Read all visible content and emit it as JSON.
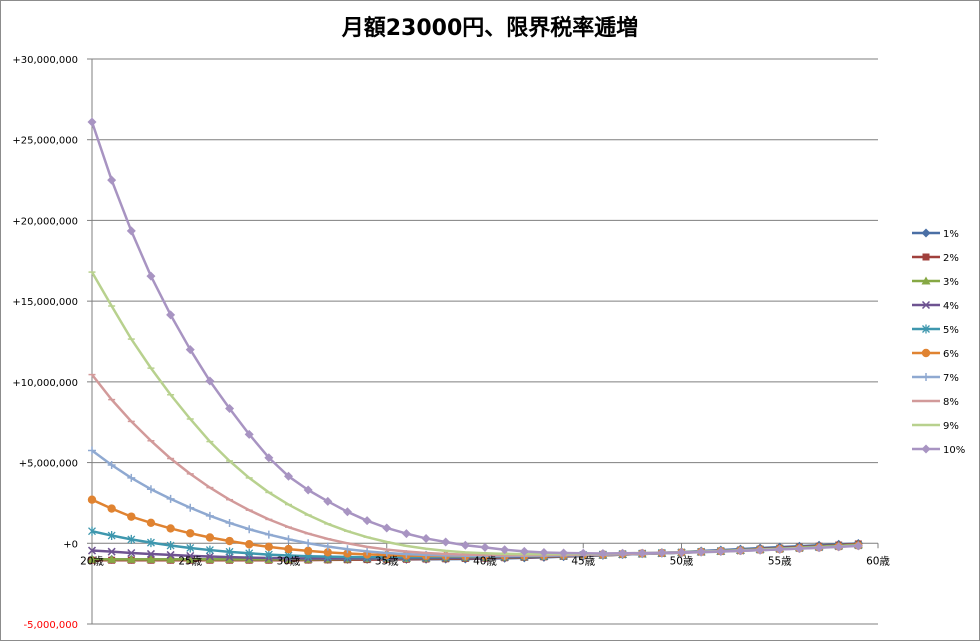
{
  "chart_data": {
    "type": "line",
    "title": "月額23000円、限界税率逓増",
    "xlabel": "",
    "ylabel": "",
    "x": [
      20,
      21,
      22,
      23,
      24,
      25,
      26,
      27,
      28,
      29,
      30,
      31,
      32,
      33,
      34,
      35,
      36,
      37,
      38,
      39,
      40,
      41,
      42,
      43,
      44,
      45,
      46,
      47,
      48,
      49,
      50,
      51,
      52,
      53,
      54,
      55,
      56,
      57,
      58,
      59
    ],
    "x_tick_labels": [
      "20歳",
      "25歳",
      "30歳",
      "35歳",
      "40歳",
      "45歳",
      "50歳",
      "55歳",
      "60歳"
    ],
    "x_tick_values": [
      20,
      25,
      30,
      35,
      40,
      45,
      50,
      55,
      60
    ],
    "y_tick_labels": [
      "+30,000,000",
      "+25,000,000",
      "+20,000,000",
      "+15,000,000",
      "+10,000,000",
      "+5,000,000",
      "+0",
      "-5,000,000"
    ],
    "y_tick_values": [
      30000000,
      25000000,
      20000000,
      15000000,
      10000000,
      5000000,
      0,
      -5000000
    ],
    "ylim": [
      -5000000,
      30000000
    ],
    "xlim": [
      20,
      60
    ],
    "grid": "horizontal",
    "legend_position": "right",
    "series": [
      {
        "name": "1%",
        "color": "#4a6fa5",
        "marker": "diamond",
        "values": [
          -1000000,
          -1000000,
          -1000000,
          -1000000,
          -1000000,
          -1000000,
          -1000000,
          -1000000,
          -1000000,
          -1000000,
          -1000000,
          -1000000,
          -1000000,
          -1000000,
          -1000000,
          -1000000,
          -1000000,
          -990000,
          -980000,
          -970000,
          -950000,
          -930000,
          -900000,
          -870000,
          -830000,
          -790000,
          -750000,
          -700000,
          -650000,
          -600000,
          -540000,
          -480000,
          -420000,
          -360000,
          -300000,
          -240000,
          -180000,
          -120000,
          -60000,
          -10000
        ]
      },
      {
        "name": "2%",
        "color": "#a0403c",
        "marker": "square",
        "values": [
          -1050000,
          -1050000,
          -1050000,
          -1050000,
          -1050000,
          -1050000,
          -1050000,
          -1050000,
          -1050000,
          -1050000,
          -1050000,
          -1040000,
          -1030000,
          -1020000,
          -1010000,
          -1000000,
          -990000,
          -975000,
          -960000,
          -940000,
          -920000,
          -895000,
          -870000,
          -840000,
          -810000,
          -775000,
          -740000,
          -700000,
          -660000,
          -615000,
          -570000,
          -520000,
          -470000,
          -415000,
          -360000,
          -300000,
          -240000,
          -180000,
          -110000,
          -40000
        ]
      },
      {
        "name": "3%",
        "color": "#86a844",
        "marker": "triangle",
        "values": [
          -1000000,
          -1000000,
          -1000000,
          -1000000,
          -1000000,
          -1000000,
          -1000000,
          -1000000,
          -1000000,
          -1000000,
          -1000000,
          -990000,
          -980000,
          -970000,
          -960000,
          -950000,
          -940000,
          -925000,
          -910000,
          -895000,
          -880000,
          -860000,
          -840000,
          -815000,
          -790000,
          -760000,
          -730000,
          -695000,
          -660000,
          -620000,
          -580000,
          -535000,
          -490000,
          -440000,
          -385000,
          -330000,
          -270000,
          -210000,
          -145000,
          -80000
        ]
      },
      {
        "name": "4%",
        "color": "#6e5391",
        "marker": "x",
        "values": [
          -450000,
          -520000,
          -600000,
          -660000,
          -720000,
          -780000,
          -820000,
          -860000,
          -890000,
          -910000,
          -930000,
          -940000,
          -945000,
          -945000,
          -940000,
          -935000,
          -925000,
          -915000,
          -900000,
          -885000,
          -870000,
          -850000,
          -830000,
          -805000,
          -780000,
          -750000,
          -720000,
          -690000,
          -655000,
          -620000,
          -580000,
          -540000,
          -495000,
          -450000,
          -400000,
          -350000,
          -295000,
          -240000,
          -180000,
          -120000
        ]
      },
      {
        "name": "5%",
        "color": "#3e97ae",
        "marker": "star",
        "values": [
          750000,
          480000,
          240000,
          40000,
          -140000,
          -290000,
          -420000,
          -530000,
          -620000,
          -700000,
          -760000,
          -800000,
          -830000,
          -850000,
          -860000,
          -865000,
          -865000,
          -860000,
          -850000,
          -840000,
          -825000,
          -810000,
          -790000,
          -770000,
          -745000,
          -720000,
          -690000,
          -660000,
          -630000,
          -595000,
          -560000,
          -520000,
          -480000,
          -435000,
          -390000,
          -340000,
          -290000,
          -235000,
          -180000,
          -120000
        ]
      },
      {
        "name": "6%",
        "color": "#e08331",
        "marker": "circle",
        "values": [
          2700000,
          2150000,
          1650000,
          1270000,
          920000,
          620000,
          360000,
          140000,
          -60000,
          -220000,
          -360000,
          -470000,
          -560000,
          -630000,
          -690000,
          -730000,
          -760000,
          -780000,
          -790000,
          -795000,
          -790000,
          -780000,
          -765000,
          -750000,
          -730000,
          -710000,
          -685000,
          -660000,
          -630000,
          -600000,
          -565000,
          -530000,
          -490000,
          -450000,
          -405000,
          -360000,
          -310000,
          -255000,
          -200000,
          -140000
        ]
      },
      {
        "name": "7%",
        "color": "#8fa9d1",
        "marker": "plus",
        "values": [
          5750000,
          4850000,
          4050000,
          3350000,
          2750000,
          2200000,
          1700000,
          1260000,
          870000,
          540000,
          250000,
          0,
          -200000,
          -370000,
          -500000,
          -600000,
          -670000,
          -720000,
          -750000,
          -770000,
          -780000,
          -780000,
          -775000,
          -765000,
          -750000,
          -730000,
          -710000,
          -685000,
          -655000,
          -625000,
          -590000,
          -555000,
          -515000,
          -470000,
          -425000,
          -375000,
          -325000,
          -270000,
          -210000,
          -150000
        ]
      },
      {
        "name": "8%",
        "color": "#d29a9a",
        "marker": "dash",
        "values": [
          10450000,
          8900000,
          7550000,
          6350000,
          5250000,
          4300000,
          3450000,
          2700000,
          2050000,
          1480000,
          1000000,
          600000,
          270000,
          0,
          -220000,
          -390000,
          -510000,
          -600000,
          -660000,
          -700000,
          -720000,
          -730000,
          -730000,
          -725000,
          -715000,
          -700000,
          -680000,
          -660000,
          -635000,
          -605000,
          -575000,
          -540000,
          -500000,
          -460000,
          -415000,
          -365000,
          -315000,
          -260000,
          -200000,
          -140000
        ]
      },
      {
        "name": "9%",
        "color": "#b8d18e",
        "marker": "dash",
        "values": [
          16800000,
          14700000,
          12650000,
          10850000,
          9200000,
          7700000,
          6300000,
          5100000,
          4050000,
          3150000,
          2400000,
          1750000,
          1200000,
          750000,
          380000,
          80000,
          -160000,
          -340000,
          -470000,
          -560000,
          -620000,
          -655000,
          -670000,
          -675000,
          -670000,
          -660000,
          -645000,
          -625000,
          -600000,
          -575000,
          -545000,
          -510000,
          -475000,
          -435000,
          -390000,
          -345000,
          -295000,
          -245000,
          -190000,
          -130000
        ]
      },
      {
        "name": "10%",
        "color": "#a894c2",
        "marker": "diamond",
        "values": [
          26100000,
          22500000,
          19350000,
          16550000,
          14150000,
          12000000,
          10050000,
          8350000,
          6750000,
          5300000,
          4150000,
          3300000,
          2600000,
          1950000,
          1400000,
          950000,
          600000,
          300000,
          80000,
          -120000,
          -250000,
          -400000,
          -500000,
          -570000,
          -600000,
          -620000,
          -630000,
          -620000,
          -610000,
          -590000,
          -565000,
          -535000,
          -500000,
          -465000,
          -425000,
          -380000,
          -330000,
          -280000,
          -225000,
          -160000
        ]
      }
    ]
  }
}
